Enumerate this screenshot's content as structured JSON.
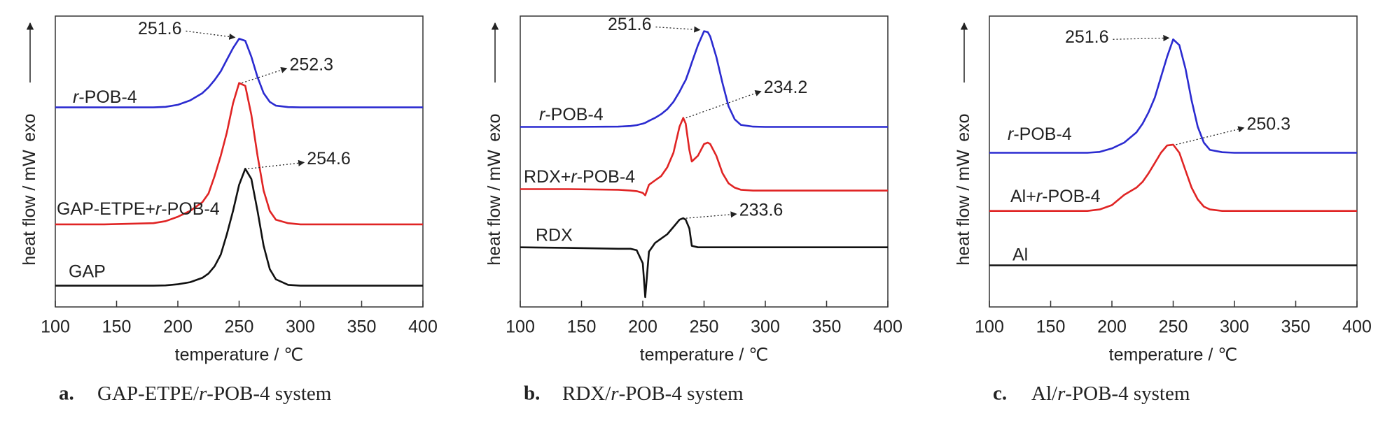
{
  "chart_data": [
    {
      "type": "line",
      "caption_label": "a.",
      "caption": "GAP-ETPE/r-POB-4 system",
      "xlabel": "temperature / ℃",
      "ylabel": "heat flow / mW",
      "y_direction_label": "exo",
      "xlim": [
        100,
        400
      ],
      "xticks": [
        100,
        150,
        200,
        250,
        300,
        350,
        400
      ],
      "ylim": [
        0,
        100
      ],
      "x": [
        100,
        140,
        180,
        190,
        200,
        210,
        220,
        225,
        230,
        235,
        240,
        245,
        250,
        255,
        260,
        265,
        270,
        275,
        280,
        290,
        300,
        340,
        400
      ],
      "series": [
        {
          "name": "r-POB-4",
          "color": "#2b2bd0",
          "values": [
            68.6,
            68.6,
            68.6,
            68.8,
            69.5,
            71,
            73.5,
            75.5,
            78,
            81,
            85,
            89,
            92.2,
            91.5,
            86,
            79,
            73.5,
            70.5,
            69.2,
            68.7,
            68.6,
            68.6,
            68.6
          ]
        },
        {
          "name": "GAP-ETPE+r-POB-4",
          "color": "#e02424",
          "values": [
            28.4,
            28.4,
            28.8,
            29.5,
            31,
            33,
            36,
            39,
            45,
            52,
            60,
            70,
            77,
            76,
            66,
            52,
            40,
            33,
            30,
            28.8,
            28.4,
            28.4,
            28.4
          ]
        },
        {
          "name": "GAP",
          "color": "#111111",
          "values": [
            7.3,
            7.3,
            7.3,
            7.4,
            7.8,
            8.5,
            10,
            11.5,
            14,
            18,
            25,
            33,
            42,
            47.5,
            44,
            33,
            21,
            13,
            9.5,
            7.6,
            7.3,
            7.3,
            7.3
          ]
        }
      ],
      "annotations": [
        "251.6",
        "252.3",
        "254.6"
      ]
    },
    {
      "type": "line",
      "caption_label": "b.",
      "caption": "RDX/r-POB-4 system",
      "xlabel": "temperature / ℃",
      "ylabel": "heat flow / mW",
      "y_direction_label": "exo",
      "xlim": [
        100,
        400
      ],
      "xticks": [
        100,
        150,
        200,
        250,
        300,
        350,
        400
      ],
      "ylim": [
        0,
        100
      ],
      "x": [
        100,
        140,
        180,
        190,
        195,
        200,
        202,
        205,
        210,
        215,
        220,
        225,
        230,
        233,
        235,
        238,
        240,
        245,
        250,
        253,
        255,
        260,
        265,
        270,
        275,
        280,
        290,
        300,
        340,
        400
      ],
      "series": [
        {
          "name": "r-POB-4",
          "color": "#2b2bd0",
          "values": [
            61.9,
            61.9,
            62,
            62.2,
            62.5,
            63,
            63.3,
            64,
            65,
            66.3,
            68,
            70.5,
            74,
            76.5,
            78,
            81.5,
            84,
            90,
            94.8,
            94.5,
            93,
            86,
            77,
            69,
            64.5,
            62.6,
            62,
            61.9,
            61.9,
            61.9
          ]
        },
        {
          "name": "RDX+r-POB-4",
          "color": "#e02424",
          "values": [
            40.5,
            40.5,
            40.3,
            40,
            39.8,
            39.2,
            38.4,
            42,
            43.5,
            45,
            48,
            53,
            62,
            65,
            63,
            54,
            50,
            52,
            56,
            56.5,
            56,
            52,
            46,
            42.5,
            41,
            40.3,
            40,
            40,
            40,
            40
          ]
        },
        {
          "name": "RDX",
          "color": "#111111",
          "values": [
            20.5,
            20.3,
            20,
            20,
            19.5,
            15,
            3.4,
            19,
            22,
            23.5,
            25,
            27.5,
            30,
            30.5,
            30,
            27,
            21,
            20.5,
            20.5,
            20.5,
            20.5,
            20.5,
            20.5,
            20.5,
            20.5,
            20.5,
            20.5,
            20.5,
            20.5,
            20.5
          ]
        }
      ],
      "annotations": [
        "251.6",
        "234.2",
        "233.6"
      ]
    },
    {
      "type": "line",
      "caption_label": "c.",
      "caption": "Al/r-POB-4 system",
      "xlabel": "temperature / ℃",
      "ylabel": "heat flow / mW",
      "y_direction_label": "exo",
      "xlim": [
        100,
        400
      ],
      "xticks": [
        100,
        150,
        200,
        250,
        300,
        350,
        400
      ],
      "ylim": [
        0,
        100
      ],
      "x": [
        100,
        140,
        180,
        190,
        200,
        210,
        220,
        225,
        230,
        235,
        240,
        245,
        250,
        255,
        260,
        265,
        270,
        275,
        280,
        290,
        300,
        340,
        400
      ],
      "series": [
        {
          "name": "r-POB-4",
          "color": "#2b2bd0",
          "values": [
            53,
            53,
            53,
            53.3,
            54.5,
            56.5,
            60,
            63,
            67,
            72,
            79,
            86,
            92,
            90,
            82,
            71,
            62,
            56.5,
            54,
            53.2,
            53,
            53,
            53
          ]
        },
        {
          "name": "Al+r-POB-4",
          "color": "#e02424",
          "values": [
            33,
            33,
            33,
            33.5,
            35,
            38.5,
            41,
            43,
            46,
            49.5,
            53,
            55.5,
            55.8,
            53,
            47,
            41,
            37,
            34.5,
            33.5,
            33,
            33,
            33,
            33
          ]
        },
        {
          "name": "Al",
          "color": "#111111",
          "values": [
            14.3,
            14.3,
            14.3,
            14.3,
            14.3,
            14.3,
            14.3,
            14.3,
            14.3,
            14.3,
            14.3,
            14.3,
            14.3,
            14.3,
            14.3,
            14.3,
            14.3,
            14.3,
            14.3,
            14.3,
            14.3,
            14.3,
            14.3
          ]
        }
      ],
      "annotations": [
        "251.6",
        "250.3"
      ]
    }
  ]
}
